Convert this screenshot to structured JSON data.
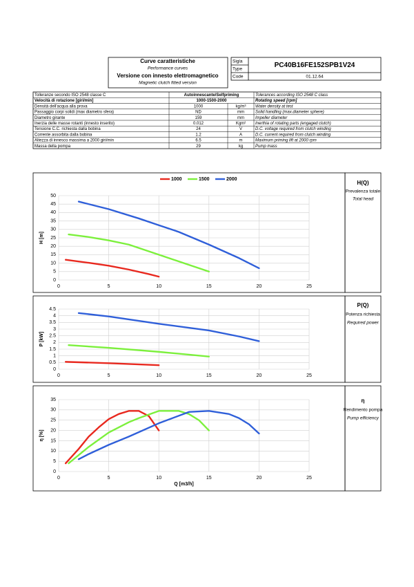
{
  "header": {
    "title": "Curve caratteristiche",
    "title_en": "Performance curves",
    "subtitle": "Versione con innesto elettromagnetico",
    "subtitle_en": "Magnetic clutch fitted version",
    "labels": [
      "Sigla",
      "Type",
      "Code"
    ],
    "model": "PC40B16FE152SPB1V24",
    "code": "01.12.64"
  },
  "table": {
    "rows": [
      [
        "Tolleranze secondo ISO 2548 classe C",
        "Autoinnescante/Selfpriming",
        "Tolerances according ISO 2548 C class"
      ],
      [
        "Velocità di rotazione [giri/min]",
        "1000-1500-2000",
        "Rotating speed [rpm]"
      ],
      [
        "Densità dell'acqua alla prova",
        "1000",
        "kg/m³",
        "Water density at test"
      ],
      [
        "Passaggio corpi solidi (max diametro sfera)",
        "ND",
        "mm",
        "Solid handling (max.diameter sphere)"
      ],
      [
        "Diametro girante",
        "159",
        "mm",
        "Impeller diameter"
      ],
      [
        "Inerzia delle masse rotanti (innesto inserito)",
        "0.012",
        "Kgm²",
        "Inerthia of rotating parts (engaged clutch)"
      ],
      [
        "Tensione C.C. richiesta dalla bobina",
        "24",
        "V",
        "D.C. voltage required from clutch winding"
      ],
      [
        "Corrente assorbita dalla bobina",
        "1.2",
        "A",
        "D.C. current required from clutch winding"
      ],
      [
        "Altezza di innesco massima a 2000 giri/min",
        "6.5",
        "m",
        "Maximum priming lift at 2000 rpm"
      ],
      [
        "Massa della pompa",
        "29",
        "kg",
        "Pump mass"
      ]
    ]
  },
  "chart_data": [
    {
      "type": "line",
      "title": "H(Q)",
      "subtitle": "Prevalenza totale",
      "subtitle_en": "Total head",
      "y_label": "H [m]",
      "xlim": [
        0,
        25
      ],
      "xticks": [
        0,
        5,
        10,
        15,
        20,
        25
      ],
      "ylim": [
        0,
        50
      ],
      "yticks": [
        0,
        5,
        10,
        15,
        20,
        25,
        30,
        35,
        40,
        45,
        50
      ],
      "grid": true,
      "legend": "top",
      "series": [
        {
          "name": "1000",
          "color": "#e8281e",
          "x": [
            0.7,
            3,
            5,
            7,
            9,
            10
          ],
          "values": [
            12,
            10.2,
            8.5,
            6.2,
            3.5,
            2
          ]
        },
        {
          "name": "1500",
          "color": "#7cf03c",
          "x": [
            1,
            3,
            5,
            7,
            10,
            12,
            15
          ],
          "values": [
            27,
            25.5,
            23.5,
            21,
            15,
            11,
            5
          ]
        },
        {
          "name": "2000",
          "color": "#2f5fd9",
          "x": [
            2,
            5,
            8,
            10,
            12,
            15,
            18,
            20
          ],
          "values": [
            46.5,
            42,
            36.5,
            32.5,
            28.5,
            21,
            13,
            7
          ]
        }
      ]
    },
    {
      "type": "line",
      "title": "P(Q)",
      "subtitle": "Potenza richiesta",
      "subtitle_en": "Required power",
      "y_label": "P [kW]",
      "xlim": [
        0,
        25
      ],
      "xticks": [
        0,
        5,
        10,
        15,
        20,
        25
      ],
      "ylim": [
        0,
        4.5
      ],
      "yticks": [
        0,
        0.5,
        1,
        1.5,
        2,
        2.5,
        3,
        3.5,
        4,
        4.5
      ],
      "grid": true,
      "series": [
        {
          "color": "#e8281e",
          "x": [
            0.7,
            5,
            10
          ],
          "values": [
            0.55,
            0.45,
            0.3
          ]
        },
        {
          "color": "#7cf03c",
          "x": [
            1,
            5,
            10,
            15
          ],
          "values": [
            1.8,
            1.6,
            1.3,
            0.95
          ]
        },
        {
          "color": "#2f5fd9",
          "x": [
            2,
            5,
            10,
            15,
            18,
            20
          ],
          "values": [
            4.2,
            3.95,
            3.4,
            2.9,
            2.45,
            2.1
          ]
        }
      ]
    },
    {
      "type": "line",
      "title": "η",
      "subtitle": "Rendimento pompa",
      "subtitle_en": "Pump efficiency",
      "y_label": "η [%]",
      "x_label": "Q [m3/h]",
      "xlim": [
        0,
        25
      ],
      "xticks": [
        0,
        5,
        10,
        15,
        20,
        25
      ],
      "ylim": [
        0,
        35
      ],
      "yticks": [
        0,
        5,
        10,
        15,
        20,
        25,
        30,
        35
      ],
      "grid": true,
      "series": [
        {
          "color": "#e8281e",
          "x": [
            0.7,
            2,
            3,
            4,
            5,
            6,
            7,
            8,
            9,
            10
          ],
          "values": [
            4,
            11,
            17,
            21.5,
            25.5,
            28,
            29.5,
            29.5,
            27,
            20
          ]
        },
        {
          "color": "#7cf03c",
          "x": [
            1,
            2,
            3,
            5,
            7,
            8,
            10,
            12,
            13,
            14,
            15
          ],
          "values": [
            4,
            8,
            12,
            19,
            24,
            26,
            29.5,
            29.5,
            28,
            25,
            20
          ]
        },
        {
          "color": "#2f5fd9",
          "x": [
            2,
            3,
            5,
            7,
            10,
            13,
            15,
            17,
            18,
            19,
            20
          ],
          "values": [
            6,
            8.5,
            13,
            17,
            23.5,
            29,
            29.5,
            28,
            26,
            23,
            18.5
          ]
        }
      ]
    }
  ]
}
